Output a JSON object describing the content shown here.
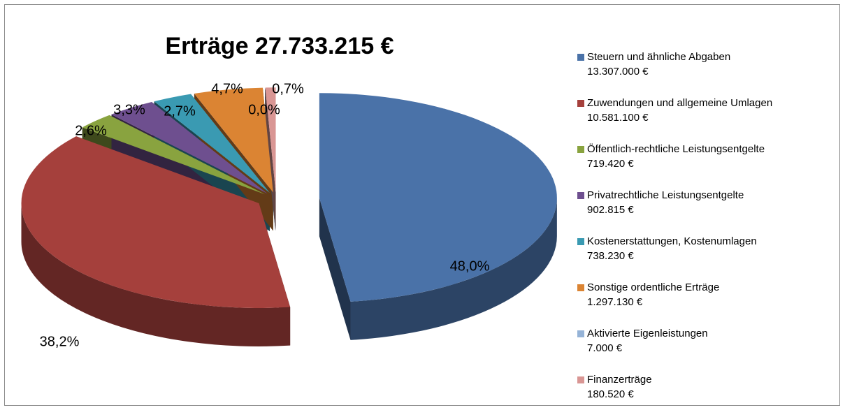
{
  "chart_data": {
    "type": "pie",
    "title": "Erträge 27.733.215 €",
    "categories": [
      "Steuern und ähnliche Abgaben",
      "Zuwendungen und allgemeine Umlagen",
      "Öffentlich-rechtliche Leistungsentgelte",
      "Privatrechtliche Leistungsentgelte",
      "Kostenerstattungen, Kostenumlagen",
      "Sonstige ordentliche Erträge",
      "Aktivierte Eigenleistungen",
      "Finanzerträge"
    ],
    "values": [
      48.0,
      38.2,
      2.6,
      3.3,
      2.7,
      4.7,
      0.0,
      0.7
    ],
    "value_labels": [
      "48,0%",
      "38,2%",
      "2,6%",
      "3,3%",
      "2,7%",
      "4,7%",
      "0,0%",
      "0,7%"
    ],
    "amount_labels": [
      "13.307.000 €",
      "10.581.100 €",
      "719.420 €",
      "902.815 €",
      "738.230 €",
      "1.297.130 €",
      "7.000 €",
      "180.520 €"
    ],
    "colors": [
      "#4a72a8",
      "#a5403c",
      "#89a33f",
      "#6e4f8f",
      "#3a9ab2",
      "#db8433",
      "#95b3d7",
      "#d99694"
    ],
    "legend": "right"
  }
}
